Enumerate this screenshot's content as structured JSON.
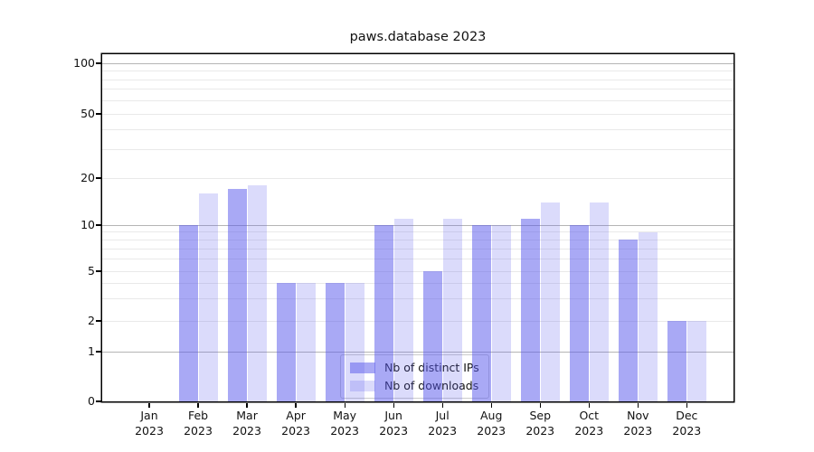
{
  "title": "paws.database 2023",
  "chart_data": {
    "type": "bar",
    "title": "paws.database 2023",
    "categories": [
      "Jan 2023",
      "Feb 2023",
      "Mar 2023",
      "Apr 2023",
      "May 2023",
      "Jun 2023",
      "Jul 2023",
      "Aug 2023",
      "Sep 2023",
      "Oct 2023",
      "Nov 2023",
      "Dec 2023"
    ],
    "category_months": [
      "Jan",
      "Feb",
      "Mar",
      "Apr",
      "May",
      "Jun",
      "Jul",
      "Aug",
      "Sep",
      "Oct",
      "Nov",
      "Dec"
    ],
    "category_year": "2023",
    "series": [
      {
        "name": "Nb of distinct IPs",
        "color": "rgba(90,90,235,0.52)",
        "values": [
          0,
          10,
          17,
          4,
          4,
          10,
          5,
          10,
          11,
          10,
          8,
          2
        ]
      },
      {
        "name": "Nb of downloads",
        "color": "rgba(90,90,235,0.22)",
        "values": [
          0,
          16,
          18,
          4,
          4,
          11,
          11,
          10,
          14,
          14,
          9,
          2
        ]
      }
    ],
    "xlabel": "",
    "ylabel": "",
    "yscale": "symlog",
    "ylim": [
      0,
      100
    ],
    "yticks_labeled": [
      0,
      1,
      2,
      5,
      10,
      20,
      50,
      100
    ],
    "ygrid_major": [
      1,
      10,
      100
    ],
    "ygrid_minor": [
      2,
      3,
      4,
      5,
      6,
      7,
      8,
      9,
      20,
      30,
      40,
      50,
      60,
      70,
      80,
      90
    ],
    "grid": "on (major dark, minor light)",
    "legend_position": "lower center inside plot",
    "colors": {
      "axis": "#000000",
      "grid_major": "#b5b5b5",
      "grid_minor": "#e9e9e9",
      "background": "#ffffff",
      "legend_border": "#cccccc"
    }
  }
}
